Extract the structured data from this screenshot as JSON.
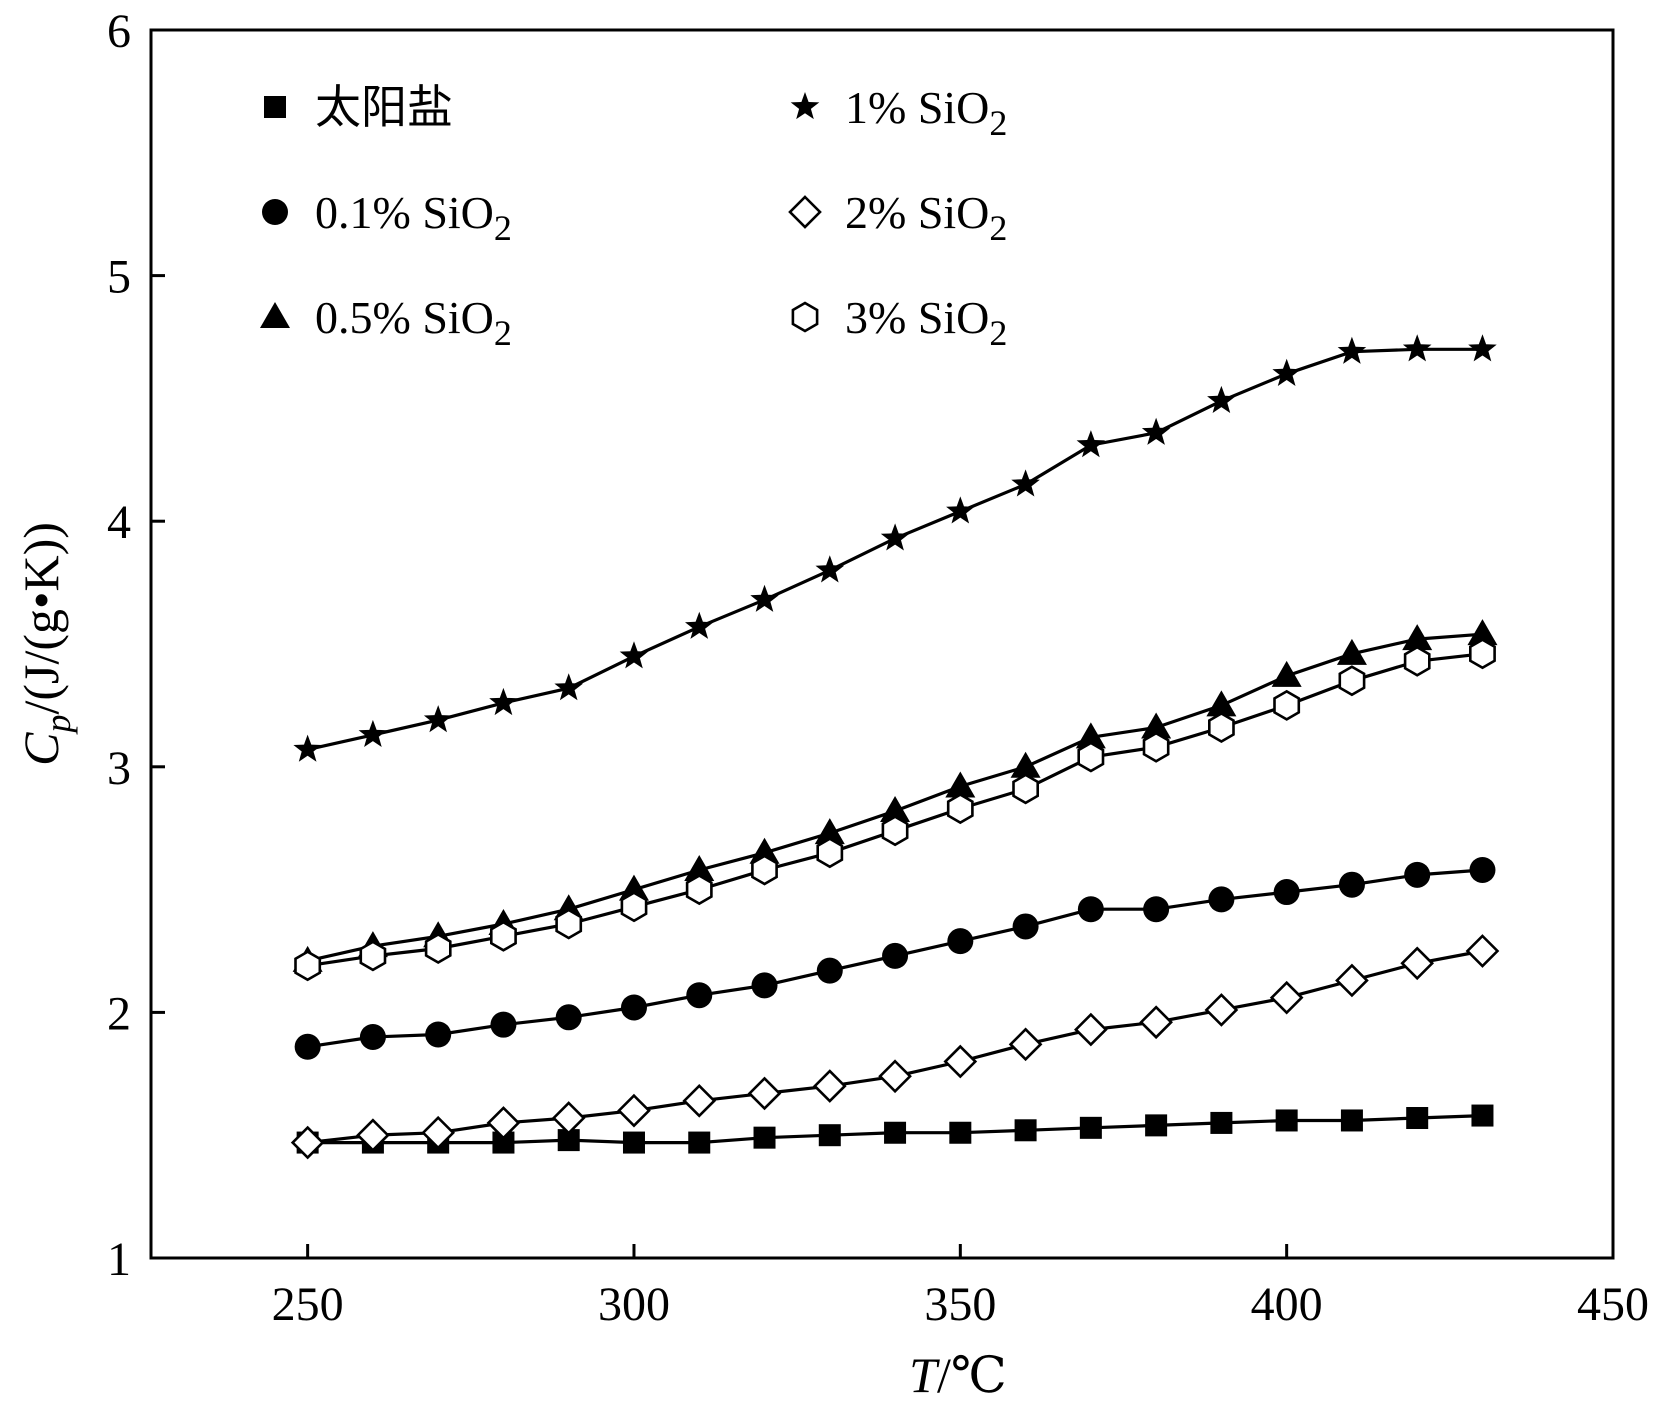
{
  "chart_data": {
    "type": "line",
    "xlabel": "T/℃",
    "xlabel_parts": {
      "var": "T",
      "unit": "/℃"
    },
    "ylabel": "Cp/(J/(g·K))",
    "ylabel_parts": {
      "var": "C",
      "sub": "p",
      "unit": "/(J/(g•K))"
    },
    "xlim": [
      226,
      450
    ],
    "ylim": [
      1,
      6
    ],
    "xticks": [
      250,
      300,
      350,
      400,
      450
    ],
    "yticks": [
      1,
      2,
      3,
      4,
      5,
      6
    ],
    "grid": false,
    "legend_position": "top-left",
    "x": [
      250,
      260,
      270,
      280,
      290,
      300,
      310,
      320,
      330,
      340,
      350,
      360,
      370,
      380,
      390,
      400,
      410,
      420,
      430
    ],
    "series": [
      {
        "name": "太阳盐",
        "name_sub": "",
        "marker": "square",
        "values": [
          1.47,
          1.47,
          1.47,
          1.47,
          1.48,
          1.47,
          1.47,
          1.49,
          1.5,
          1.51,
          1.51,
          1.52,
          1.53,
          1.54,
          1.55,
          1.56,
          1.56,
          1.57,
          1.58
        ]
      },
      {
        "name": "0.1% SiO",
        "name_sub": "2",
        "marker": "circle",
        "values": [
          1.86,
          1.9,
          1.91,
          1.95,
          1.98,
          2.02,
          2.07,
          2.11,
          2.17,
          2.23,
          2.29,
          2.35,
          2.42,
          2.42,
          2.46,
          2.49,
          2.52,
          2.56,
          2.58
        ]
      },
      {
        "name": "0.5% SiO",
        "name_sub": "2",
        "marker": "triangle",
        "values": [
          2.21,
          2.27,
          2.31,
          2.36,
          2.42,
          2.5,
          2.58,
          2.65,
          2.73,
          2.82,
          2.92,
          3.0,
          3.12,
          3.16,
          3.25,
          3.37,
          3.46,
          3.52,
          3.54
        ]
      },
      {
        "name": "1% SiO",
        "name_sub": "2",
        "marker": "star",
        "values": [
          3.07,
          3.13,
          3.19,
          3.26,
          3.32,
          3.45,
          3.57,
          3.68,
          3.8,
          3.93,
          4.04,
          4.15,
          4.31,
          4.36,
          4.49,
          4.6,
          4.69,
          4.7,
          4.7
        ]
      },
      {
        "name": "2% SiO",
        "name_sub": "2",
        "marker": "diamond",
        "values": [
          1.47,
          1.5,
          1.51,
          1.55,
          1.57,
          1.6,
          1.64,
          1.67,
          1.7,
          1.74,
          1.8,
          1.87,
          1.93,
          1.96,
          2.01,
          2.06,
          2.13,
          2.2,
          2.25
        ]
      },
      {
        "name": "3% SiO",
        "name_sub": "2",
        "marker": "hexagon",
        "values": [
          2.19,
          2.23,
          2.26,
          2.31,
          2.36,
          2.43,
          2.5,
          2.58,
          2.65,
          2.74,
          2.83,
          2.91,
          3.04,
          3.08,
          3.16,
          3.25,
          3.35,
          3.43,
          3.46
        ]
      }
    ]
  },
  "colors": {
    "ink": "#000000",
    "background": "#ffffff",
    "hollow_fill": "#ffffff"
  }
}
